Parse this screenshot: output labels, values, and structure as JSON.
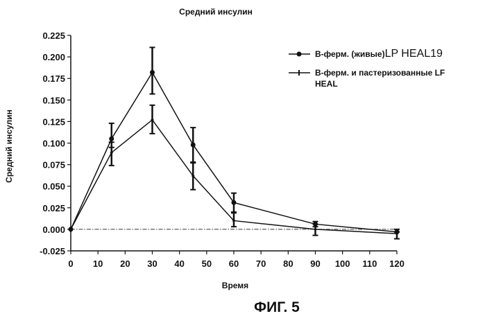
{
  "chart_data": {
    "type": "line",
    "title": "Средний инсулин",
    "xlabel": "Время",
    "ylabel": "Средний инсулин",
    "xlim": [
      0,
      120
    ],
    "ylim": [
      -0.025,
      0.225
    ],
    "xticks": [
      0,
      10,
      20,
      30,
      40,
      50,
      60,
      70,
      80,
      90,
      100,
      110,
      120
    ],
    "yticks": [
      "-0.025",
      "0.000",
      "0.025",
      "0.050",
      "0.075",
      "0.100",
      "0.125",
      "0.150",
      "0.175",
      "0.200",
      "0.225"
    ],
    "grid": false,
    "legend_position": "top-right",
    "series": [
      {
        "name_bold": "В-ферм. (живые)",
        "name_regular": "LP HEAL19",
        "marker": "circle",
        "x": [
          0,
          15,
          30,
          45,
          60,
          90,
          120
        ],
        "y": [
          0.0,
          0.105,
          0.182,
          0.098,
          0.031,
          0.006,
          -0.003
        ],
        "err_low": [
          0.0,
          0.095,
          0.157,
          0.077,
          0.019,
          0.003,
          -0.003
        ],
        "err_high": [
          0.0,
          0.123,
          0.211,
          0.118,
          0.042,
          0.009,
          0.0
        ]
      },
      {
        "name_bold": "В-ферм. и пастеризованные LF HEAL",
        "name_line1": "В-ферм. и пастеризованные LF",
        "name_line2": "HEAL",
        "marker": "cross",
        "x": [
          0,
          15,
          30,
          45,
          60,
          90,
          120
        ],
        "y": [
          0.0,
          0.089,
          0.127,
          0.062,
          0.01,
          0.0,
          -0.005
        ],
        "err_low": [
          0.0,
          0.074,
          0.111,
          0.046,
          0.003,
          -0.007,
          -0.011
        ],
        "err_high": [
          0.0,
          0.101,
          0.144,
          0.078,
          0.02,
          0.006,
          -0.003
        ]
      }
    ],
    "reference_line": {
      "y": 0.0,
      "style": "dash-dot"
    }
  },
  "figure_caption": "ФИГ. 5"
}
